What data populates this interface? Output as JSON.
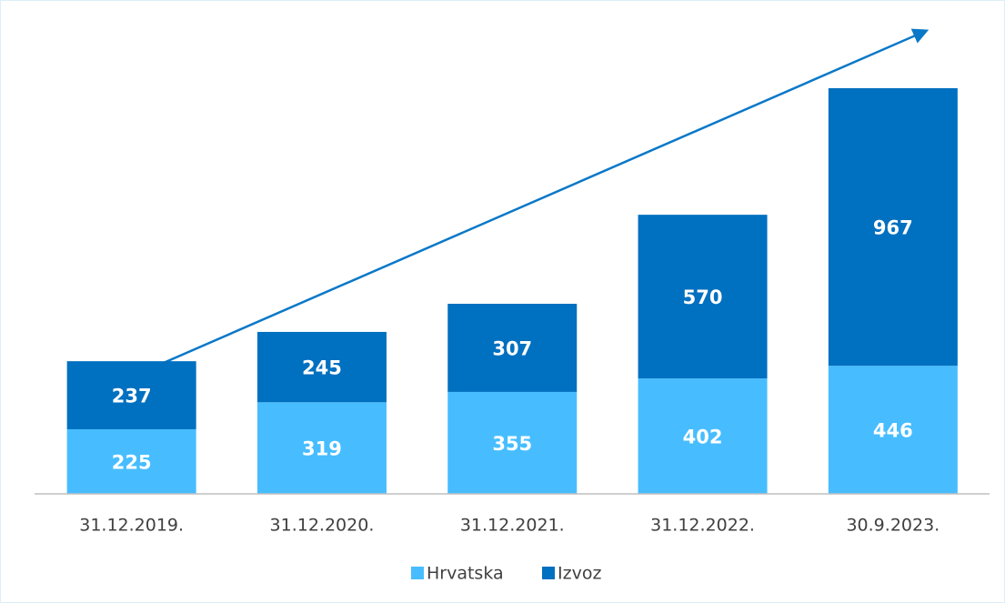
{
  "chart_data": {
    "type": "stacked_bar",
    "categories": [
      "31.12.2019.",
      "31.12.2020.",
      "31.12.2021.",
      "31.12.2022.",
      "30.9.2023."
    ],
    "series": [
      {
        "name": "Hrvatska",
        "color": "#47bdff",
        "values": [
          225,
          319,
          355,
          402,
          446
        ]
      },
      {
        "name": "Izvoz",
        "color": "#0070c0",
        "values": [
          237,
          245,
          307,
          570,
          967
        ]
      }
    ],
    "legend": "bottom"
  }
}
